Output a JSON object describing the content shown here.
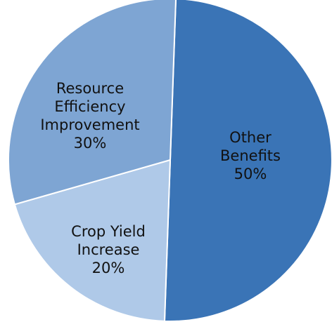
{
  "chart_data": {
    "type": "pie",
    "title": "",
    "slices": [
      {
        "label_lines": [
          "Other",
          "Benefits",
          "50%"
        ],
        "value": 50,
        "color": "#3A74B6"
      },
      {
        "label_lines": [
          "Crop Yield",
          "Increase",
          "20%"
        ],
        "value": 20,
        "color": "#AFC9E8"
      },
      {
        "label_lines": [
          "Resource",
          "Efficiency",
          "Improvement",
          "30%"
        ],
        "value": 30,
        "color": "#7EA5D3"
      }
    ]
  }
}
